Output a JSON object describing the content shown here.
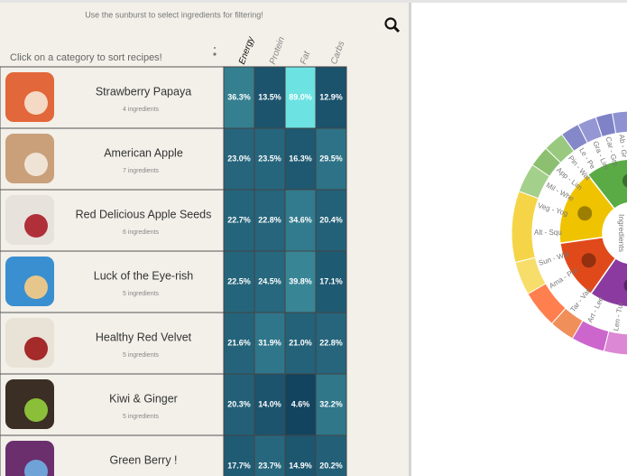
{
  "header": {
    "hint": "Use the sunburst to select ingredients for filtering!",
    "sort_hint": "Click on a category to sort recipes!"
  },
  "columns": [
    "Energy",
    "Protein",
    "Fat",
    "Carbs"
  ],
  "recipes": [
    {
      "name": "Strawberry Papaya",
      "ingredients": "4 ingredients",
      "cells": [
        "36.3%",
        "13.5%",
        "89.0%",
        "12.9%"
      ]
    },
    {
      "name": "American Apple",
      "ingredients": "7 ingredients",
      "cells": [
        "23.0%",
        "23.5%",
        "16.3%",
        "29.5%"
      ]
    },
    {
      "name": "Red Delicious Apple Seeds",
      "ingredients": "6 ingredients",
      "cells": [
        "22.7%",
        "22.8%",
        "34.6%",
        "20.4%"
      ]
    },
    {
      "name": "Luck of the Eye-rish",
      "ingredients": "5 ingredients",
      "cells": [
        "22.5%",
        "24.5%",
        "39.8%",
        "17.1%"
      ]
    },
    {
      "name": "Healthy Red Velvet",
      "ingredients": "5 ingredients",
      "cells": [
        "21.6%",
        "31.9%",
        "21.0%",
        "22.8%"
      ]
    },
    {
      "name": "Kiwi & Ginger",
      "ingredients": "5 ingredients",
      "cells": [
        "20.3%",
        "14.0%",
        "4.6%",
        "32.2%"
      ]
    },
    {
      "name": "Green Berry !",
      "cells": [
        "17.7%",
        "23.7%",
        "14.9%",
        "20.2%"
      ]
    }
  ],
  "sunburst": {
    "center_label": "Ingredients",
    "labels": [
      "Ab - Gr",
      "Car - Gra",
      "Gra - Lim",
      "Le - Pe",
      "Pin - Wat",
      "App - Lim",
      "Mil - Whe",
      "Veg - Yog",
      "Alt - Squ",
      "Sun - Wal",
      "Ama - Pur",
      "Tar - Van",
      "Art - Lee",
      "Len - Tur"
    ]
  }
}
